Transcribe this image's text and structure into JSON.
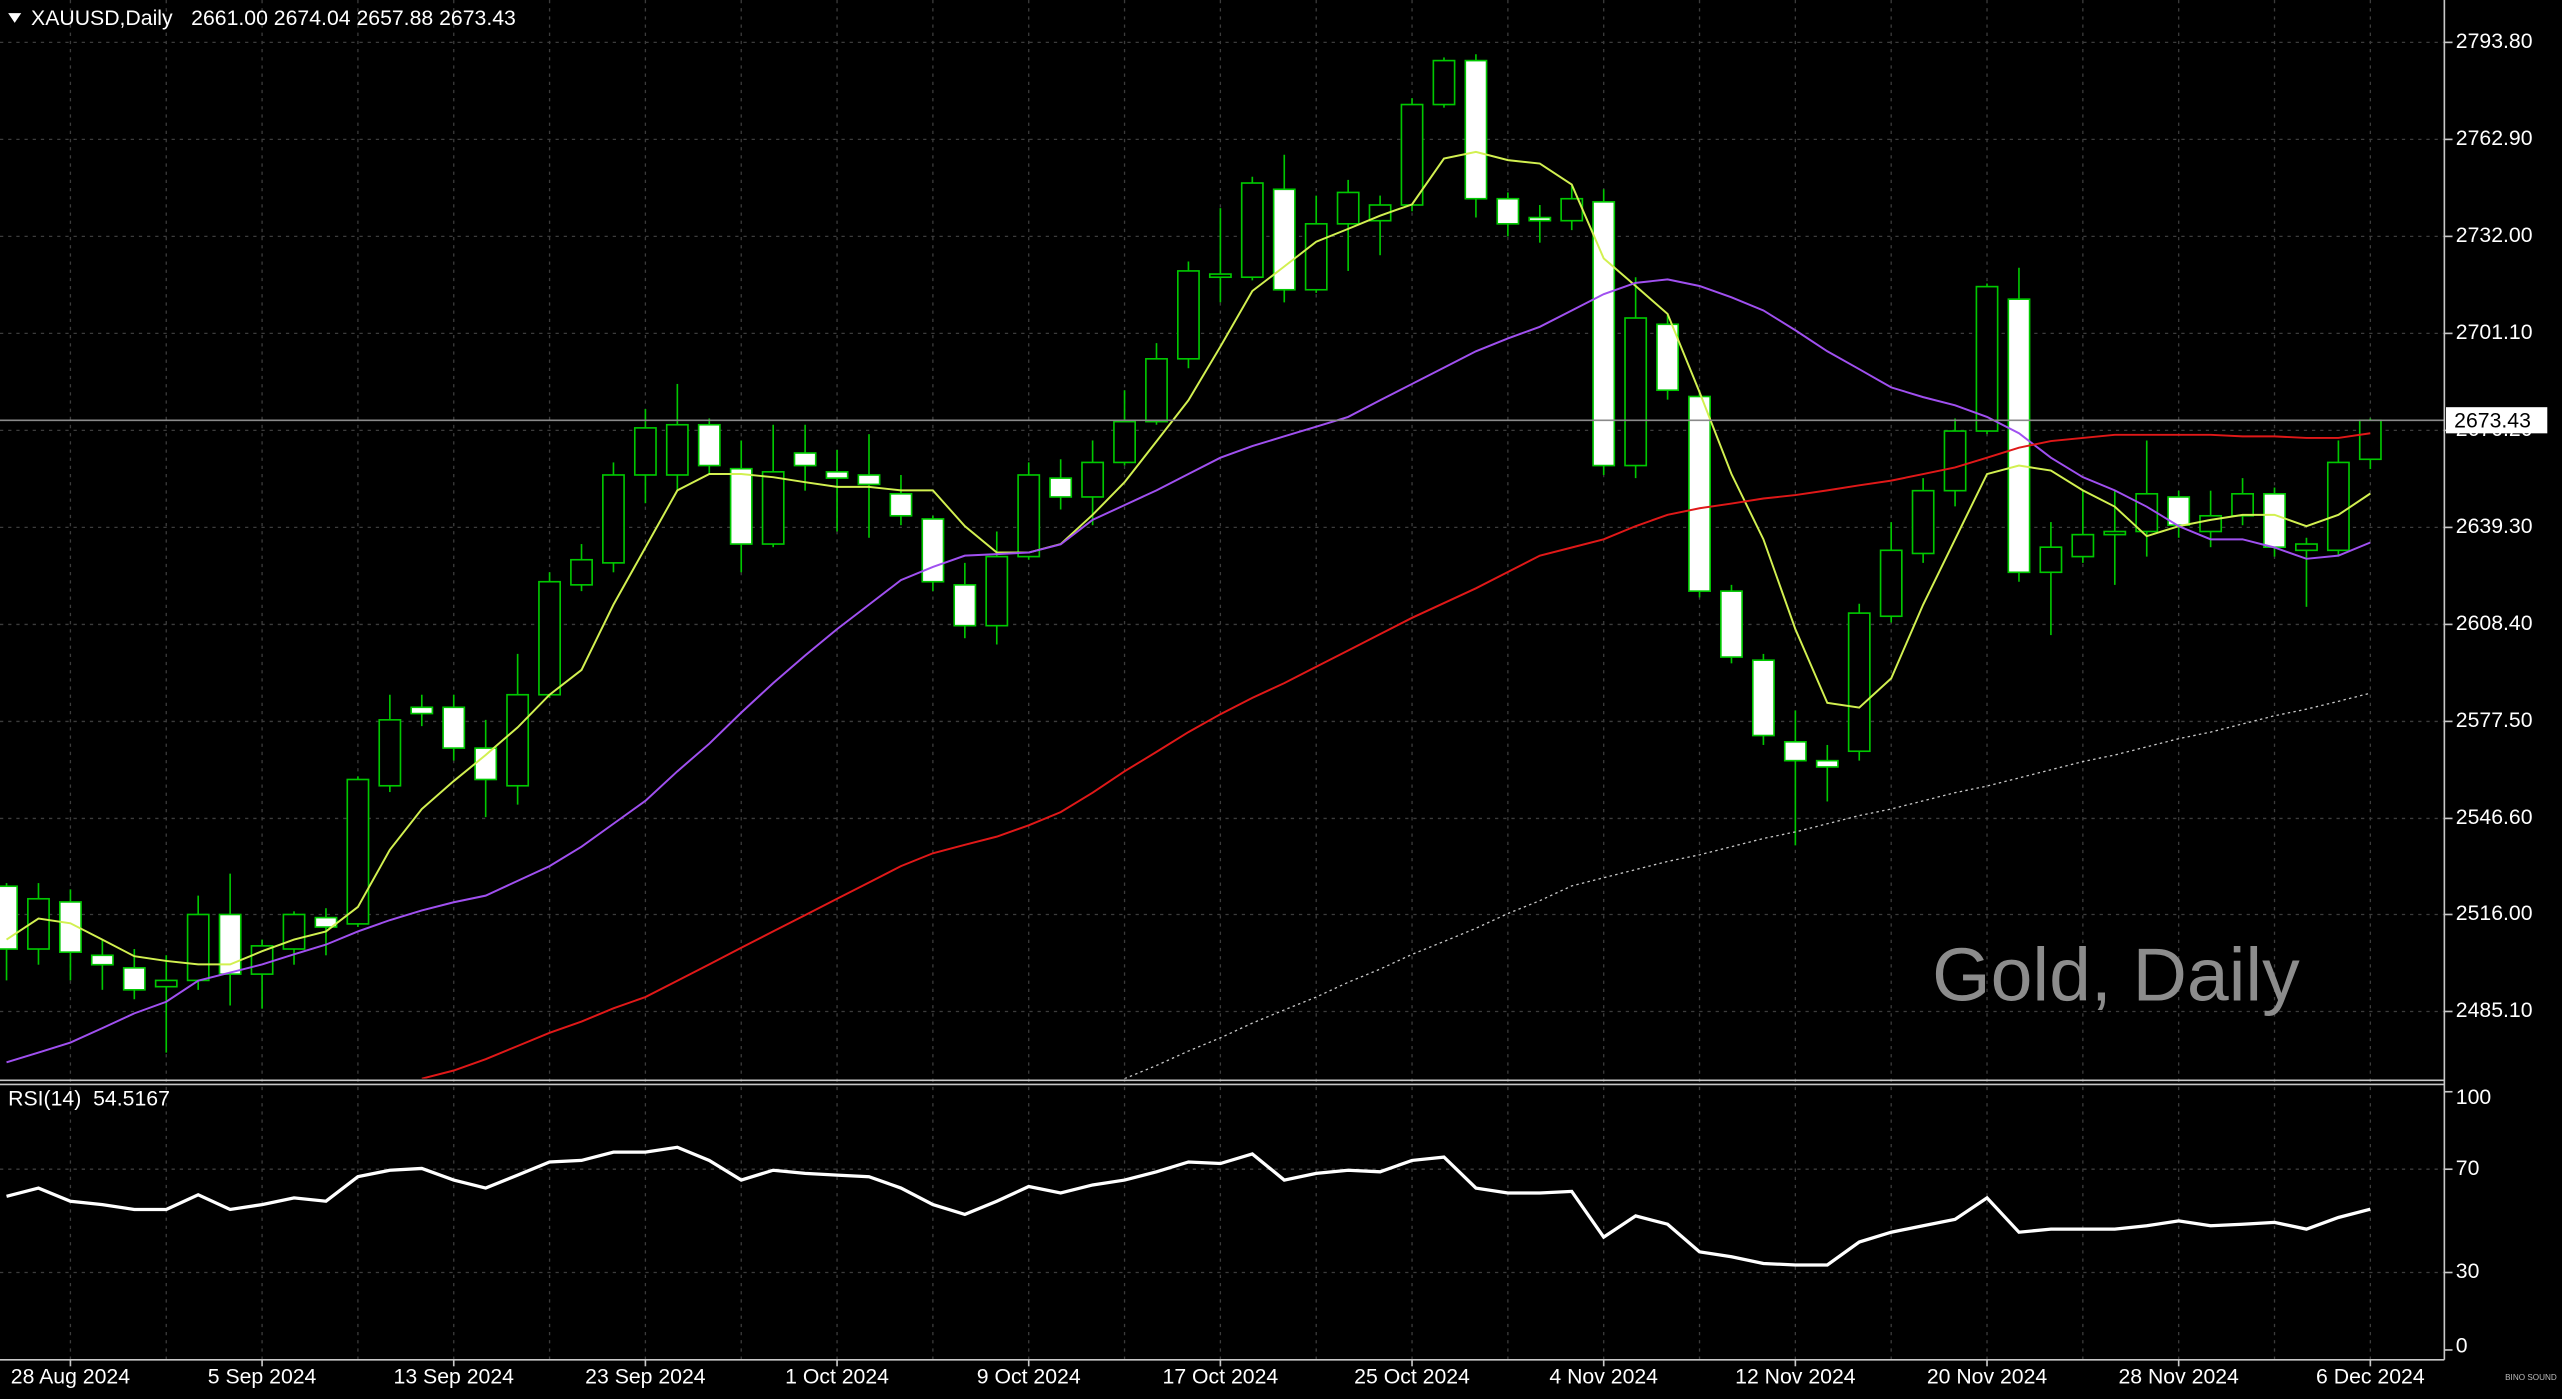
{
  "header": {
    "symbol": "XAUUSD,Daily",
    "ohlc": "2661.00 2674.04 2657.88 2673.43"
  },
  "watermark": "Gold, Daily",
  "logo": "BINO SOUND",
  "chart_data": [
    {
      "type": "candlestick",
      "categories": [
        "",
        "",
        "28 Aug 2024",
        "",
        "",
        "",
        "",
        "",
        "5 Sep 2024",
        "",
        "",
        "",
        "",
        "",
        "13 Sep 2024",
        "",
        "",
        "",
        "",
        "",
        "23 Sep 2024",
        "",
        "",
        "",
        "",
        "",
        "1 Oct 2024",
        "",
        "",
        "",
        "",
        "",
        "9 Oct 2024",
        "",
        "",
        "",
        "",
        "",
        "17 Oct 2024",
        "",
        "",
        "",
        "",
        "",
        "25 Oct 2024",
        "",
        "",
        "",
        "",
        "",
        "4 Nov 2024",
        "",
        "",
        "",
        "",
        "",
        "12 Nov 2024",
        "",
        "",
        "",
        "",
        "",
        "20 Nov 2024",
        "",
        "",
        "",
        "",
        "",
        "28 Nov 2024",
        "",
        "",
        "",
        "",
        "",
        "6 Dec 2024"
      ],
      "open": [
        2525,
        2505,
        2520,
        2503,
        2499,
        2493,
        2495,
        2516,
        2497,
        2505,
        2515,
        2513,
        2557,
        2582,
        2582,
        2569,
        2557,
        2586,
        2621,
        2628,
        2656,
        2656,
        2672,
        2658,
        2634,
        2663,
        2657,
        2656,
        2650,
        2642,
        2621,
        2608,
        2630,
        2655,
        2649,
        2660,
        2673,
        2693,
        2719,
        2719,
        2747,
        2715,
        2736,
        2737,
        2742,
        2774,
        2788,
        2744,
        2738,
        2737,
        2743,
        2659,
        2704,
        2681,
        2619,
        2597,
        2571,
        2565,
        2568,
        2611,
        2631,
        2651,
        2670,
        2712,
        2625,
        2630,
        2637,
        2638,
        2649,
        2638,
        2643,
        2650,
        2632,
        2632,
        2661
      ],
      "high": [
        2526,
        2526,
        2524,
        2508,
        2505,
        2503,
        2522,
        2529,
        2508,
        2517,
        2518,
        2560,
        2586,
        2586,
        2586,
        2578,
        2599,
        2625,
        2634,
        2660,
        2677,
        2685,
        2674,
        2667,
        2672,
        2672,
        2664,
        2669,
        2656,
        2643,
        2628,
        2638,
        2660,
        2661,
        2667,
        2683,
        2698,
        2724,
        2741,
        2751,
        2758,
        2745,
        2750,
        2745,
        2776,
        2789,
        2790,
        2746,
        2742,
        2748,
        2747,
        2719,
        2707,
        2683,
        2621,
        2599,
        2581,
        2570,
        2615,
        2641,
        2655,
        2674,
        2717,
        2722,
        2641,
        2651,
        2651,
        2667,
        2651,
        2651,
        2655,
        2652,
        2636,
        2667,
        2674.04
      ],
      "low": [
        2495,
        2500,
        2495,
        2492,
        2489,
        2472,
        2492,
        2487,
        2486,
        2500,
        2503,
        2512,
        2555,
        2576,
        2565,
        2547,
        2551,
        2585,
        2619,
        2625,
        2647,
        2651,
        2656,
        2625,
        2633,
        2651,
        2638,
        2636,
        2640,
        2619,
        2604,
        2602,
        2629,
        2645,
        2640,
        2659,
        2672,
        2690,
        2711,
        2718,
        2711,
        2714,
        2721,
        2726,
        2740,
        2773,
        2738,
        2732,
        2730,
        2734,
        2656,
        2655,
        2680,
        2617,
        2596,
        2570,
        2538,
        2552,
        2565,
        2609,
        2628,
        2646,
        2669,
        2622,
        2605,
        2628,
        2621,
        2630,
        2636,
        2633,
        2640,
        2630,
        2614,
        2630,
        2657.88
      ],
      "close": [
        2505,
        2521,
        2504,
        2500,
        2492,
        2495,
        2516,
        2497,
        2506,
        2516,
        2512,
        2559,
        2578,
        2580,
        2569,
        2559,
        2586,
        2622,
        2629,
        2656,
        2671,
        2672,
        2659,
        2634,
        2657,
        2659,
        2655,
        2653,
        2643,
        2622,
        2608,
        2630,
        2656,
        2649,
        2660,
        2673,
        2693,
        2721,
        2720,
        2749,
        2715,
        2736,
        2746,
        2742,
        2774,
        2788,
        2744,
        2736,
        2737,
        2744,
        2659,
        2706,
        2683,
        2619,
        2598,
        2573,
        2565,
        2563,
        2612,
        2632,
        2651,
        2670,
        2716,
        2625,
        2633,
        2637,
        2638,
        2650,
        2640,
        2643,
        2650,
        2633,
        2634,
        2660,
        2673.43
      ],
      "wick_color": "#00c800",
      "bull_fill": "#000000",
      "bear_fill": "#ffffff",
      "ylim": [
        2463.7,
        2807.3
      ],
      "yticks": [
        {
          "value": 2485.1,
          "label": "2485.10"
        },
        {
          "value": 2516,
          "label": "2516.00"
        },
        {
          "value": 2546.6,
          "label": "2546.60"
        },
        {
          "value": 2577.5,
          "label": "2577.50"
        },
        {
          "value": 2608.4,
          "label": "2608.40"
        },
        {
          "value": 2639.3,
          "label": "2639.30"
        },
        {
          "value": 2670.2,
          "label": "2670.20"
        },
        {
          "value": 2701.1,
          "label": "2701.10"
        },
        {
          "value": 2732,
          "label": "2732.00"
        },
        {
          "value": 2762.9,
          "label": "2762.90"
        },
        {
          "value": 2793.8,
          "label": "2793.80"
        }
      ],
      "grid": true,
      "series": [
        {
          "color": "#d2f050",
          "style": "solid",
          "values": [
            2508.0,
            2514.7,
            2513.2,
            2508.0,
            2502.7,
            2501.2,
            2500.1,
            2500.1,
            2504.3,
            2508.0,
            2510.6,
            2518.4,
            2536.6,
            2549.6,
            2558.5,
            2566.8,
            2575.6,
            2586.0,
            2593.9,
            2614.7,
            2632.9,
            2651.1,
            2656.3,
            2656.3,
            2655.3,
            2653.7,
            2652.2,
            2652.2,
            2651.1,
            2651.1,
            2639.7,
            2631.3,
            2631.3,
            2634.0,
            2643.3,
            2653.7,
            2666.7,
            2679.8,
            2696.9,
            2714.6,
            2722.4,
            2730.3,
            2734.4,
            2738.6,
            2742.2,
            2756.8,
            2758.9,
            2756.3,
            2755.2,
            2748.5,
            2725.0,
            2716.2,
            2707.3,
            2682.4,
            2656.3,
            2635.5,
            2606.9,
            2583.4,
            2581.9,
            2591.2,
            2614.7,
            2635.5,
            2656.3,
            2659.0,
            2657.4,
            2651.1,
            2645.9,
            2636.5,
            2639.7,
            2641.7,
            2643.3,
            2643.3,
            2639.7,
            2643.3,
            2650.1
          ]
        },
        {
          "color": "#a050f0",
          "style": "solid",
          "values": [
            2468.9,
            2472.0,
            2475.2,
            2479.8,
            2484.5,
            2488.2,
            2494.9,
            2497.5,
            2500.1,
            2503.3,
            2506.4,
            2510.6,
            2514.2,
            2517.3,
            2519.9,
            2522.0,
            2526.7,
            2531.4,
            2537.6,
            2544.9,
            2552.2,
            2561.6,
            2570.4,
            2580.3,
            2589.7,
            2598.5,
            2606.9,
            2614.7,
            2622.5,
            2626.7,
            2630.3,
            2630.8,
            2631.3,
            2633.9,
            2641.7,
            2646.4,
            2651.1,
            2656.3,
            2661.5,
            2665.2,
            2668.3,
            2671.4,
            2674.5,
            2679.8,
            2685.0,
            2690.2,
            2695.4,
            2699.5,
            2703.2,
            2708.4,
            2713.6,
            2717.2,
            2718.3,
            2716.2,
            2712.6,
            2708.4,
            2702.1,
            2695.4,
            2689.7,
            2683.9,
            2680.8,
            2678.2,
            2674.5,
            2669.3,
            2661.5,
            2655.3,
            2651.1,
            2645.9,
            2639.7,
            2635.5,
            2635.5,
            2632.9,
            2629.3,
            2630.3,
            2634.5
          ]
        },
        {
          "color": "#e01818",
          "style": "solid",
          "values": [
            null,
            null,
            null,
            null,
            null,
            null,
            null,
            null,
            null,
            null,
            null,
            null,
            null,
            2463.7,
            2466.3,
            2469.9,
            2474.1,
            2478.3,
            2481.9,
            2486.1,
            2489.7,
            2494.9,
            2500.1,
            2505.4,
            2510.6,
            2515.8,
            2521.0,
            2526.2,
            2531.4,
            2535.5,
            2538.2,
            2540.8,
            2544.4,
            2548.6,
            2554.8,
            2561.6,
            2567.8,
            2574.1,
            2579.8,
            2585.0,
            2589.7,
            2594.9,
            2600.1,
            2605.3,
            2610.5,
            2615.2,
            2619.9,
            2625.1,
            2630.3,
            2632.9,
            2635.5,
            2639.7,
            2643.3,
            2645.4,
            2646.9,
            2648.5,
            2649.6,
            2651.1,
            2652.7,
            2654.2,
            2656.3,
            2658.4,
            2661.5,
            2664.7,
            2666.8,
            2667.8,
            2668.8,
            2668.8,
            2668.8,
            2668.8,
            2668.3,
            2668.3,
            2667.8,
            2667.8,
            2669.3
          ]
        },
        {
          "color": "#c8c8c8",
          "style": "dotted",
          "values": [
            null,
            null,
            null,
            null,
            null,
            null,
            null,
            null,
            null,
            null,
            null,
            null,
            null,
            null,
            null,
            null,
            null,
            null,
            null,
            null,
            null,
            null,
            null,
            null,
            null,
            null,
            null,
            null,
            null,
            null,
            null,
            null,
            null,
            null,
            null,
            2463.7,
            2467.9,
            2472.5,
            2476.7,
            2481.4,
            2485.6,
            2489.7,
            2494.4,
            2498.6,
            2503.3,
            2507.4,
            2511.6,
            2516.3,
            2520.4,
            2525.1,
            2527.7,
            2530.3,
            2532.9,
            2535.0,
            2537.6,
            2540.2,
            2542.3,
            2544.9,
            2547.5,
            2549.6,
            2552.2,
            2554.8,
            2556.9,
            2559.5,
            2562.1,
            2564.7,
            2566.8,
            2569.4,
            2572.0,
            2574.1,
            2576.7,
            2579.3,
            2581.4,
            2583.9,
            2586.5
          ]
        }
      ]
    },
    {
      "type": "line",
      "title": "RSI(14)",
      "series": [
        {
          "color": "#ffffff",
          "values": [
            59.5,
            62.7,
            57.6,
            56.3,
            54.4,
            54.4,
            60.1,
            54.4,
            56.3,
            58.9,
            57.6,
            67.1,
            69.6,
            70.3,
            65.8,
            62.7,
            67.7,
            72.8,
            73.4,
            76.6,
            76.6,
            78.5,
            73.4,
            65.8,
            69.6,
            68.4,
            67.7,
            67.1,
            62.7,
            56.3,
            52.5,
            57.6,
            63.3,
            60.8,
            63.9,
            65.8,
            69.0,
            72.8,
            72.2,
            75.9,
            65.8,
            68.4,
            69.6,
            69.0,
            73.4,
            74.7,
            62.7,
            60.8,
            60.8,
            61.4,
            43.7,
            51.9,
            48.7,
            38.0,
            36.1,
            33.5,
            32.9,
            32.9,
            41.8,
            45.6,
            48.1,
            50.6,
            58.9,
            45.6,
            46.8,
            46.8,
            46.8,
            48.1,
            50.0,
            48.1,
            48.7,
            49.4,
            46.8,
            51.3,
            54.5167
          ]
        }
      ],
      "ylim": [
        0,
        100
      ],
      "yticks": [
        0,
        30,
        70,
        100
      ],
      "grid": true
    }
  ]
}
